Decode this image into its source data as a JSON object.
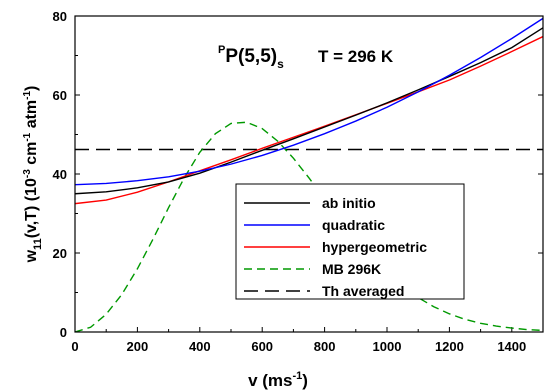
{
  "chart_data": {
    "type": "line",
    "title_main": "P(5,5)",
    "title_pre": "P",
    "title_sub": "s",
    "title_temp": "T = 296 K",
    "xlabel_main": "v (ms",
    "xlabel_sup": "-1",
    "xlabel_close": ")",
    "ylabel_w": "w",
    "ylabel_sub": "11",
    "ylabel_mid": "(v,T) (10",
    "ylabel_sup1": "-3",
    "ylabel_cm": " cm",
    "ylabel_sup2": "-1",
    "ylabel_atm": " atm",
    "ylabel_sup3": "-1",
    "ylabel_end": ")",
    "xlim": [
      0,
      1500
    ],
    "ylim": [
      0,
      80
    ],
    "xticks": [
      0,
      200,
      400,
      600,
      800,
      1000,
      1200,
      1400
    ],
    "yticks": [
      0,
      20,
      40,
      60,
      80
    ],
    "legend_position": "center-right",
    "series": [
      {
        "name": "ab initio",
        "color": "#000000",
        "dash": "solid",
        "x": [
          0,
          100,
          200,
          300,
          400,
          500,
          600,
          700,
          800,
          900,
          1000,
          1100,
          1200,
          1300,
          1400,
          1500
        ],
        "y": [
          35.0,
          35.5,
          36.5,
          38.0,
          40.2,
          43.0,
          46.0,
          48.9,
          51.9,
          54.9,
          58.0,
          61.3,
          64.7,
          68.2,
          72.0,
          77.0
        ]
      },
      {
        "name": "quadratic",
        "color": "#0000ff",
        "dash": "solid",
        "x": [
          0,
          100,
          200,
          300,
          400,
          500,
          600,
          700,
          800,
          900,
          1000,
          1100,
          1200,
          1300,
          1400,
          1500
        ],
        "y": [
          37.3,
          37.6,
          38.3,
          39.3,
          40.7,
          42.5,
          44.7,
          47.3,
          50.2,
          53.4,
          56.9,
          60.8,
          65.0,
          69.5,
          74.3,
          79.4
        ]
      },
      {
        "name": "hypergeometric",
        "color": "#ff0000",
        "dash": "solid",
        "x": [
          0,
          100,
          200,
          300,
          400,
          500,
          600,
          700,
          800,
          900,
          1000,
          1100,
          1200,
          1300,
          1400,
          1500
        ],
        "y": [
          32.5,
          33.4,
          35.4,
          38.0,
          40.8,
          43.6,
          46.5,
          49.3,
          52.1,
          55.0,
          57.9,
          60.8,
          63.8,
          67.3,
          71.0,
          74.8
        ]
      },
      {
        "name": "MB 296K",
        "color": "#009900",
        "dash": "dashed",
        "x": [
          0,
          50,
          100,
          150,
          200,
          250,
          300,
          350,
          400,
          450,
          500,
          550,
          600,
          650,
          700,
          750,
          800,
          850,
          900,
          950,
          1000,
          1050,
          1100,
          1150,
          1200,
          1250,
          1300,
          1350,
          1400,
          1450,
          1500
        ],
        "y": [
          0,
          1.2,
          4.5,
          9.5,
          16,
          23.5,
          31.5,
          39,
          45.5,
          50.2,
          52.8,
          53.1,
          51.5,
          48.3,
          44,
          39,
          33.7,
          28.5,
          23.5,
          19,
          15,
          11.5,
          8.7,
          6.4,
          4.6,
          3.2,
          2.2,
          1.5,
          1.0,
          0.6,
          0.4
        ]
      },
      {
        "name": "Th averaged",
        "color": "#000000",
        "dash": "longdash",
        "x": [
          0,
          1500
        ],
        "y": [
          46.2,
          46.2
        ]
      }
    ]
  }
}
